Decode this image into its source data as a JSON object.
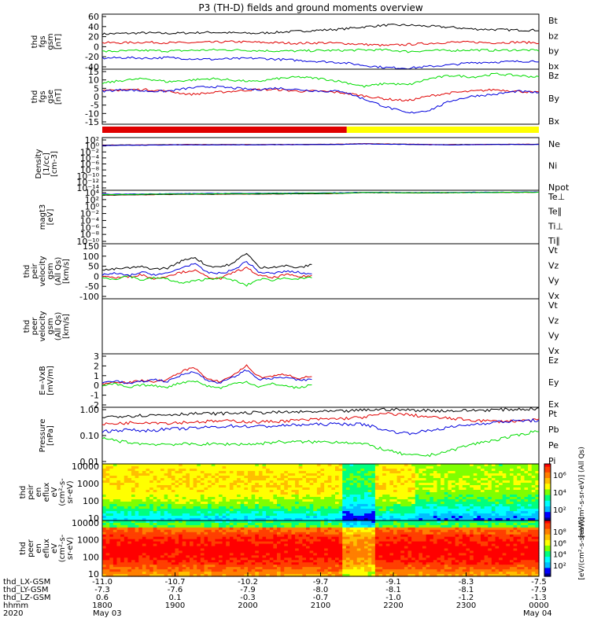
{
  "title": "P3 (TH-D) fields and ground moments overview",
  "colors": {
    "black": "#000000",
    "red": "#e00000",
    "green": "#00dd00",
    "blue": "#0000dd",
    "yellow": "#ffff00"
  },
  "chart_data": [
    {
      "type": "line",
      "ylabel": [
        "thd",
        "fgs",
        "gsm",
        "[nT]"
      ],
      "ylim": [
        -40,
        60
      ],
      "yticks": [
        "60",
        "40",
        "20",
        "0",
        "-20",
        "-40"
      ],
      "series": [
        {
          "name": "Bt",
          "color": "black",
          "values": [
            24,
            25,
            26,
            25,
            26,
            27,
            26,
            25,
            27,
            29,
            31,
            33,
            37,
            40,
            40,
            38,
            36,
            33,
            32,
            31,
            31
          ]
        },
        {
          "name": "bz",
          "color": "red",
          "values": [
            8,
            8,
            9,
            8,
            8,
            9,
            10,
            9,
            8,
            7,
            8,
            7,
            5,
            3,
            5,
            7,
            9,
            9,
            8,
            9,
            8
          ]
        },
        {
          "name": "by",
          "color": "green",
          "values": [
            -8,
            -7,
            -6,
            -7,
            -6,
            -5,
            -5,
            -6,
            -7,
            -7,
            -6,
            -6,
            -5,
            -5,
            -8,
            -6,
            -6,
            -5,
            -6,
            -5,
            -6
          ]
        },
        {
          "name": "bx",
          "color": "blue",
          "values": [
            -20,
            -19,
            -20,
            -19,
            -21,
            -22,
            -21,
            -20,
            -22,
            -24,
            -26,
            -28,
            -33,
            -37,
            -38,
            -35,
            -32,
            -28,
            -27,
            -26,
            -25
          ]
        }
      ]
    },
    {
      "type": "line",
      "ylabel": [
        "thd",
        "fgs",
        "gse",
        "[nT]"
      ],
      "ylim": [
        -20,
        15
      ],
      "yticks": [
        "15",
        "10",
        "5",
        "0",
        "-5",
        "-10",
        "-15"
      ],
      "series": [
        {
          "name": "Bz",
          "color": "red",
          "values": [
            1,
            2,
            2,
            1,
            -1,
            0,
            1,
            2,
            2,
            1,
            1,
            0,
            -2,
            -4,
            -5,
            -2,
            0,
            1,
            2,
            1,
            0
          ]
        },
        {
          "name": "By",
          "color": "green",
          "values": [
            6,
            8,
            9,
            7,
            8,
            9,
            8,
            7,
            9,
            10,
            9,
            7,
            4,
            6,
            5,
            9,
            11,
            10,
            12,
            11,
            10
          ]
        },
        {
          "name": "Bx",
          "color": "blue",
          "values": [
            1,
            2,
            1,
            1,
            3,
            4,
            3,
            2,
            3,
            2,
            1,
            1,
            -4,
            -9,
            -13,
            -11,
            -5,
            -2,
            -1,
            1,
            0
          ]
        }
      ]
    },
    {
      "type": "line",
      "ylabel": [
        "Density",
        "[1/cc]",
        "[cm-3]"
      ],
      "ylog": true,
      "ylim": [
        1e-14,
        100
      ],
      "yticks": [
        "10²",
        "10⁰",
        "10⁻²",
        "10⁻⁴",
        "10⁻⁶",
        "10⁻⁸",
        "10⁻¹⁰",
        "10⁻¹²",
        "10⁻¹⁴"
      ],
      "series": [
        {
          "name": "Ne",
          "color": "red",
          "values": [
            0.5,
            0.6,
            0.6,
            0.7,
            0.8,
            0.7,
            0.8,
            0.7,
            0.8,
            0.8,
            0.9,
            1.0,
            1.5,
            1.2,
            1.0,
            0.8,
            0.7,
            0.8,
            0.9,
            1.0,
            1.0
          ]
        },
        {
          "name": "Ni",
          "color": "black",
          "values": [
            0.45,
            0.55,
            0.55,
            0.65,
            0.7,
            0.65,
            0.7,
            0.65,
            0.75,
            0.75,
            0.85,
            0.9,
            1.3,
            1.1,
            0.9,
            0.75,
            0.65,
            0.75,
            0.85,
            0.9,
            0.9
          ]
        },
        {
          "name": "Npot",
          "color": "blue",
          "values": [
            0.4,
            0.5,
            0.5,
            0.6,
            0.65,
            0.6,
            0.65,
            0.6,
            0.7,
            0.7,
            0.8,
            0.85,
            1.2,
            1.0,
            0.85,
            0.7,
            0.6,
            0.7,
            0.8,
            0.85,
            0.85
          ]
        }
      ]
    },
    {
      "type": "line",
      "ylabel": [
        "magt3",
        "[eV]"
      ],
      "ylog": true,
      "ylim": [
        1e-10,
        10000
      ],
      "yticks": [
        "10⁴",
        "10²",
        "10⁰",
        "10⁻²",
        "10⁻⁴",
        "10⁻⁶",
        "10⁻⁸",
        "10⁻¹⁰"
      ],
      "series": [
        {
          "name": "Te⊥",
          "color": "red",
          "values": [
            500,
            600,
            700,
            800,
            900,
            900,
            1000,
            1000,
            1100,
            1200,
            1300,
            1500,
            2500,
            2200,
            2000,
            2000,
            2200,
            2500,
            2600,
            2800,
            3000
          ]
        },
        {
          "name": "Te∥",
          "color": "black",
          "values": [
            550,
            650,
            750,
            850,
            950,
            950,
            1050,
            1050,
            1150,
            1250,
            1350,
            1600,
            2600,
            2300,
            2100,
            2100,
            2300,
            2600,
            2700,
            2900,
            3100
          ]
        },
        {
          "name": "Ti⊥",
          "color": "blue",
          "values": [
            900,
            1000,
            1100,
            1300,
            1400,
            1500,
            1600,
            1700,
            1800,
            1900,
            2000,
            2200,
            3000,
            2800,
            2600,
            2600,
            2800,
            3000,
            3200,
            3400,
            3500
          ]
        },
        {
          "name": "Ti∥",
          "color": "green",
          "values": [
            700,
            800,
            900,
            1000,
            1100,
            1200,
            1300,
            1400,
            1500,
            1600,
            1700,
            1800,
            2600,
            2400,
            2200,
            2200,
            2400,
            2600,
            2800,
            3000,
            3100
          ]
        }
      ]
    },
    {
      "type": "line",
      "ylabel": [
        "thd",
        "peir",
        "velocity",
        "gsm",
        "(All Qs)",
        "[km/s]"
      ],
      "ylim": [
        -100,
        150
      ],
      "yticks": [
        "150",
        "100",
        "50",
        "0",
        "-50",
        "-100"
      ],
      "xend": 0.48,
      "series": [
        {
          "name": "Vt",
          "color": "black",
          "values": [
            30,
            35,
            40,
            45,
            35,
            40,
            70,
            90,
            50,
            45,
            60,
            110,
            40,
            45,
            50,
            40,
            55
          ]
        },
        {
          "name": "Vz",
          "color": "red",
          "values": [
            5,
            -5,
            0,
            10,
            -10,
            5,
            20,
            30,
            0,
            -10,
            20,
            40,
            5,
            -5,
            10,
            0,
            5
          ]
        },
        {
          "name": "Vy",
          "color": "green",
          "values": [
            -5,
            -10,
            5,
            -15,
            -5,
            -10,
            -30,
            -20,
            -10,
            -5,
            -15,
            -40,
            -10,
            -15,
            -5,
            -10,
            -5
          ]
        },
        {
          "name": "Vx",
          "color": "blue",
          "values": [
            10,
            15,
            5,
            20,
            10,
            15,
            40,
            60,
            20,
            15,
            30,
            70,
            20,
            15,
            25,
            20,
            10
          ]
        }
      ]
    },
    {
      "type": "line",
      "ylabel": [
        "thd",
        "peer",
        "velocity",
        "gsm",
        "(All Qs)",
        "[km/s]"
      ],
      "ylim": [
        null,
        null
      ],
      "yticks": [],
      "series": [
        {
          "name": "Vt",
          "color": "black",
          "values": []
        },
        {
          "name": "Vz",
          "color": "red",
          "values": []
        },
        {
          "name": "Vy",
          "color": "green",
          "values": []
        },
        {
          "name": "Vx",
          "color": "blue",
          "values": []
        }
      ]
    },
    {
      "type": "line",
      "ylabel": [
        "E=-VxB",
        "[mV/m]"
      ],
      "ylim": [
        -2,
        3
      ],
      "yticks": [
        "3",
        "2",
        "1",
        "0",
        "-1",
        "-2"
      ],
      "xend": 0.48,
      "series": [
        {
          "name": "Ez",
          "color": "red",
          "values": [
            0.2,
            0.4,
            0.3,
            0.5,
            0.4,
            0.6,
            1.3,
            1.8,
            0.6,
            0.4,
            1.0,
            1.9,
            0.8,
            0.9,
            1.1,
            0.7,
            0.9
          ]
        },
        {
          "name": "Ey",
          "color": "green",
          "values": [
            0.0,
            0.2,
            -0.2,
            0.1,
            0.0,
            -0.1,
            0.3,
            0.5,
            0.0,
            -0.2,
            0.2,
            0.4,
            -0.1,
            0.2,
            0.0,
            -0.2,
            0.1
          ]
        },
        {
          "name": "Ex",
          "color": "blue",
          "values": [
            0.3,
            0.5,
            0.2,
            0.4,
            0.6,
            0.4,
            1.0,
            1.4,
            0.5,
            0.3,
            0.8,
            1.5,
            0.6,
            0.7,
            0.8,
            0.5,
            0.6
          ]
        }
      ]
    },
    {
      "type": "line",
      "ylabel": [
        "Pressure",
        "[nPa]"
      ],
      "ylog": true,
      "ylim": [
        0.01,
        1.0
      ],
      "yticks": [
        "1.00",
        "0.10",
        "0.01"
      ],
      "series": [
        {
          "name": "Pt",
          "color": "black",
          "values": [
            0.45,
            0.5,
            0.52,
            0.55,
            0.6,
            0.6,
            0.62,
            0.65,
            0.66,
            0.68,
            0.7,
            0.72,
            0.8,
            0.85,
            0.8,
            0.78,
            0.75,
            0.78,
            0.82,
            0.85,
            0.9
          ]
        },
        {
          "name": "Pb",
          "color": "red",
          "values": [
            0.25,
            0.28,
            0.3,
            0.28,
            0.3,
            0.32,
            0.33,
            0.3,
            0.32,
            0.35,
            0.38,
            0.4,
            0.45,
            0.6,
            0.55,
            0.45,
            0.4,
            0.35,
            0.32,
            0.33,
            0.35
          ]
        },
        {
          "name": "Pe",
          "color": "green",
          "values": [
            0.08,
            0.06,
            0.05,
            0.05,
            0.05,
            0.05,
            0.05,
            0.05,
            0.06,
            0.06,
            0.06,
            0.06,
            0.05,
            0.03,
            0.02,
            0.02,
            0.03,
            0.05,
            0.07,
            0.1,
            0.15
          ]
        },
        {
          "name": "Pi",
          "color": "blue",
          "values": [
            0.14,
            0.16,
            0.15,
            0.17,
            0.18,
            0.2,
            0.22,
            0.21,
            0.22,
            0.24,
            0.25,
            0.26,
            0.25,
            0.15,
            0.12,
            0.15,
            0.2,
            0.25,
            0.3,
            0.33,
            0.35
          ]
        }
      ]
    },
    {
      "type": "heatmap",
      "ylabel": [
        "thd",
        "peir",
        "en",
        "eflux",
        "eV",
        "(cm²-s-",
        "sr-eV)"
      ],
      "ylog": true,
      "ylim": [
        5,
        20000
      ],
      "yticks": [
        "10000",
        "1000",
        "100",
        "10"
      ],
      "colorbar": {
        "label": "[eV/(cm²-s-sr-eV)] (All Qs)",
        "ticks": [
          "10⁶",
          "10⁴",
          "10²"
        ]
      }
    },
    {
      "type": "heatmap",
      "ylabel": [
        "thd",
        "peer",
        "en",
        "eflux",
        "eV",
        "(cm²-s-",
        "sr-eV)"
      ],
      "ylog": true,
      "ylim": [
        5,
        20000
      ],
      "yticks": [
        "10000",
        "1000",
        "100",
        "10"
      ],
      "colorbar": {
        "label": "[eV/(cm²-s-sr-eV)]",
        "ticks": [
          "10⁸",
          "10⁶",
          "10⁴",
          "10²"
        ]
      }
    }
  ],
  "xaxis": {
    "rows": [
      {
        "label": "thd_LX-GSM",
        "values": [
          "-11.0",
          "-10.7",
          "-10.2",
          "-9.7",
          "-9.1",
          "-8.3",
          "-7.5"
        ]
      },
      {
        "label": "thd_LY-GSM",
        "values": [
          "-7.3",
          "-7.6",
          "-7.9",
          "-8.0",
          "-8.1",
          "-8.1",
          "-7.9"
        ]
      },
      {
        "label": "thd_LZ-GSM",
        "values": [
          "0.6",
          "0.1",
          "-0.3",
          "-0.7",
          "-1.0",
          "-1.2",
          "-1.3"
        ]
      },
      {
        "label": "hhmm",
        "values": [
          "1800",
          "1900",
          "2000",
          "2100",
          "2200",
          "2300",
          "0000"
        ]
      }
    ],
    "year": "2020",
    "date_start": "May 03",
    "date_end": "May 04"
  }
}
